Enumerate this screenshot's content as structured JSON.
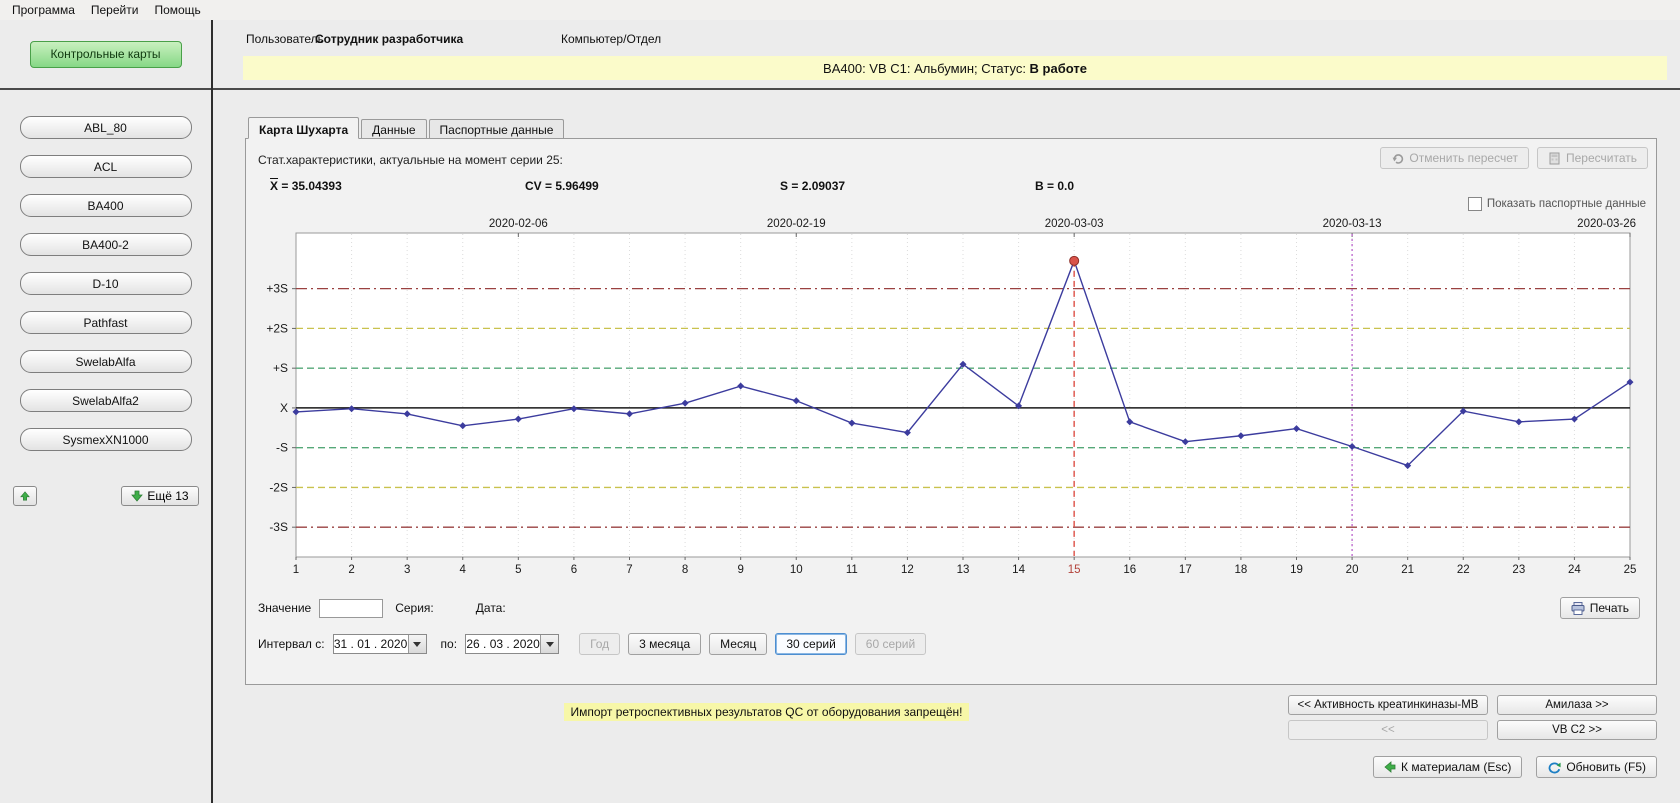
{
  "menu": {
    "items": [
      "Программа",
      "Перейти",
      "Помощь"
    ]
  },
  "sidebar": {
    "control_charts_button": "Контрольные карты",
    "devices": [
      "ABL_80",
      "ACL",
      "BA400",
      "BA400-2",
      "D-10",
      "Pathfast",
      "SwelabAlfa",
      "SwelabAlfa2",
      "SysmexXN1000"
    ],
    "more_button": "Ещё 13"
  },
  "header": {
    "user_label": "Пользователь",
    "user_value": "Сотрудник разработчика",
    "computer_label": "Компьютер/Отдел",
    "banner_prefix": "BA400: VB C1: Альбумин; Статус: ",
    "banner_status": "В работе"
  },
  "tabs": [
    {
      "label": "Карта Шухарта",
      "active": true
    },
    {
      "label": "Данные",
      "active": false
    },
    {
      "label": "Паспортные данные",
      "active": false
    }
  ],
  "stats": {
    "title": "Стат.характеристики, актуальные на момент серии 25:",
    "metrics": [
      {
        "label": "X",
        "overline": true,
        "value": "35.04393"
      },
      {
        "label": "CV",
        "value": "5.96499"
      },
      {
        "label": "S",
        "value": "2.09037"
      },
      {
        "label": "B",
        "value": "0.0"
      }
    ]
  },
  "actions": {
    "undo_recalc": "Отменить пересчет",
    "recalc": "Пересчитать",
    "show_passport_checkbox": "Показать паспортные данные",
    "print": "Печать"
  },
  "value_row": {
    "value_label": "Значение",
    "value_input": "",
    "series_label": "Серия:",
    "date_label": "Дата:"
  },
  "interval": {
    "from_label": "Интервал с:",
    "from_value": "31 . 01 . 2020",
    "to_label": "по:",
    "to_value": "26 . 03 . 2020",
    "buttons": [
      {
        "label": "Год",
        "name": "year",
        "state": "disabled"
      },
      {
        "label": "3 месяца",
        "name": "3-months",
        "state": "normal"
      },
      {
        "label": "Месяц",
        "name": "month",
        "state": "normal"
      },
      {
        "label": "30 серий",
        "name": "30-series",
        "state": "selected"
      },
      {
        "label": "60 серий",
        "name": "60-series",
        "state": "disabled"
      }
    ]
  },
  "footer": {
    "warning": "Импорт ретроспективных результатов QC от оборудования запрещён!",
    "nav_buttons": [
      {
        "label": "<< Активность креатинкиназы-МВ",
        "name": "prev-test",
        "state": "normal"
      },
      {
        "label": "Амилаза >>",
        "name": "next-test",
        "state": "normal"
      },
      {
        "label": "<<",
        "name": "prev-material",
        "state": "disabled"
      },
      {
        "label": "VB C2 >>",
        "name": "next-material",
        "state": "normal"
      }
    ],
    "to_materials": "К материалам (Esc)",
    "refresh": "Обновить (F5)"
  },
  "chart_data": {
    "type": "line",
    "title": "",
    "x": [
      1,
      2,
      3,
      4,
      5,
      6,
      7,
      8,
      9,
      10,
      11,
      12,
      13,
      14,
      15,
      16,
      17,
      18,
      19,
      20,
      21,
      22,
      23,
      24,
      25
    ],
    "values_sigma": [
      -0.1,
      -0.02,
      -0.15,
      -0.45,
      -0.28,
      -0.02,
      -0.15,
      0.12,
      0.55,
      0.18,
      -0.38,
      -0.62,
      1.1,
      0.05,
      3.7,
      -0.35,
      -0.85,
      -0.7,
      -0.52,
      -0.97,
      -1.45,
      -0.08,
      -0.35,
      -0.28,
      0.65
    ],
    "values_approx": [
      34.83,
      35.0,
      34.73,
      34.1,
      34.46,
      35.0,
      34.73,
      35.29,
      36.19,
      35.42,
      34.25,
      33.75,
      37.34,
      35.15,
      42.78,
      34.31,
      33.27,
      33.58,
      33.96,
      33.02,
      32.01,
      34.88,
      34.31,
      34.46,
      36.4
    ],
    "center": 35.04393,
    "sd": 2.09037,
    "cv": 5.96499,
    "bias": 0.0,
    "ylim_sigma": [
      -3.75,
      4.4
    ],
    "y_tick_labels": [
      "+3S",
      "+2S",
      "+S",
      "X",
      "-S",
      "-2S",
      "-3S"
    ],
    "y_tick_sigma": [
      3,
      2,
      1,
      0,
      -1,
      -2,
      -3
    ],
    "top_axis_dates": [
      {
        "label": "2020-02-06",
        "at_series": 5
      },
      {
        "label": "2020-02-19",
        "at_series": 10
      },
      {
        "label": "2020-03-03",
        "at_series": 15
      },
      {
        "label": "2020-03-13",
        "at_series": 20
      },
      {
        "label": "2020-03-26",
        "at_series": 25
      }
    ],
    "out_of_control_point": {
      "series": 15,
      "sigma": 3.7,
      "marker_color": "#d9534a"
    },
    "cursor_line": {
      "series": 20,
      "color": "#b455c8",
      "style": "dotted"
    },
    "line_color": "#3c3c9e",
    "limit_colors": {
      "sigma3": "#9a4140",
      "sigma2": "#c9c24e",
      "sigma1": "#55a878",
      "center": "#1a1a1a"
    },
    "grid": "vertical-dotted",
    "legend": false
  }
}
